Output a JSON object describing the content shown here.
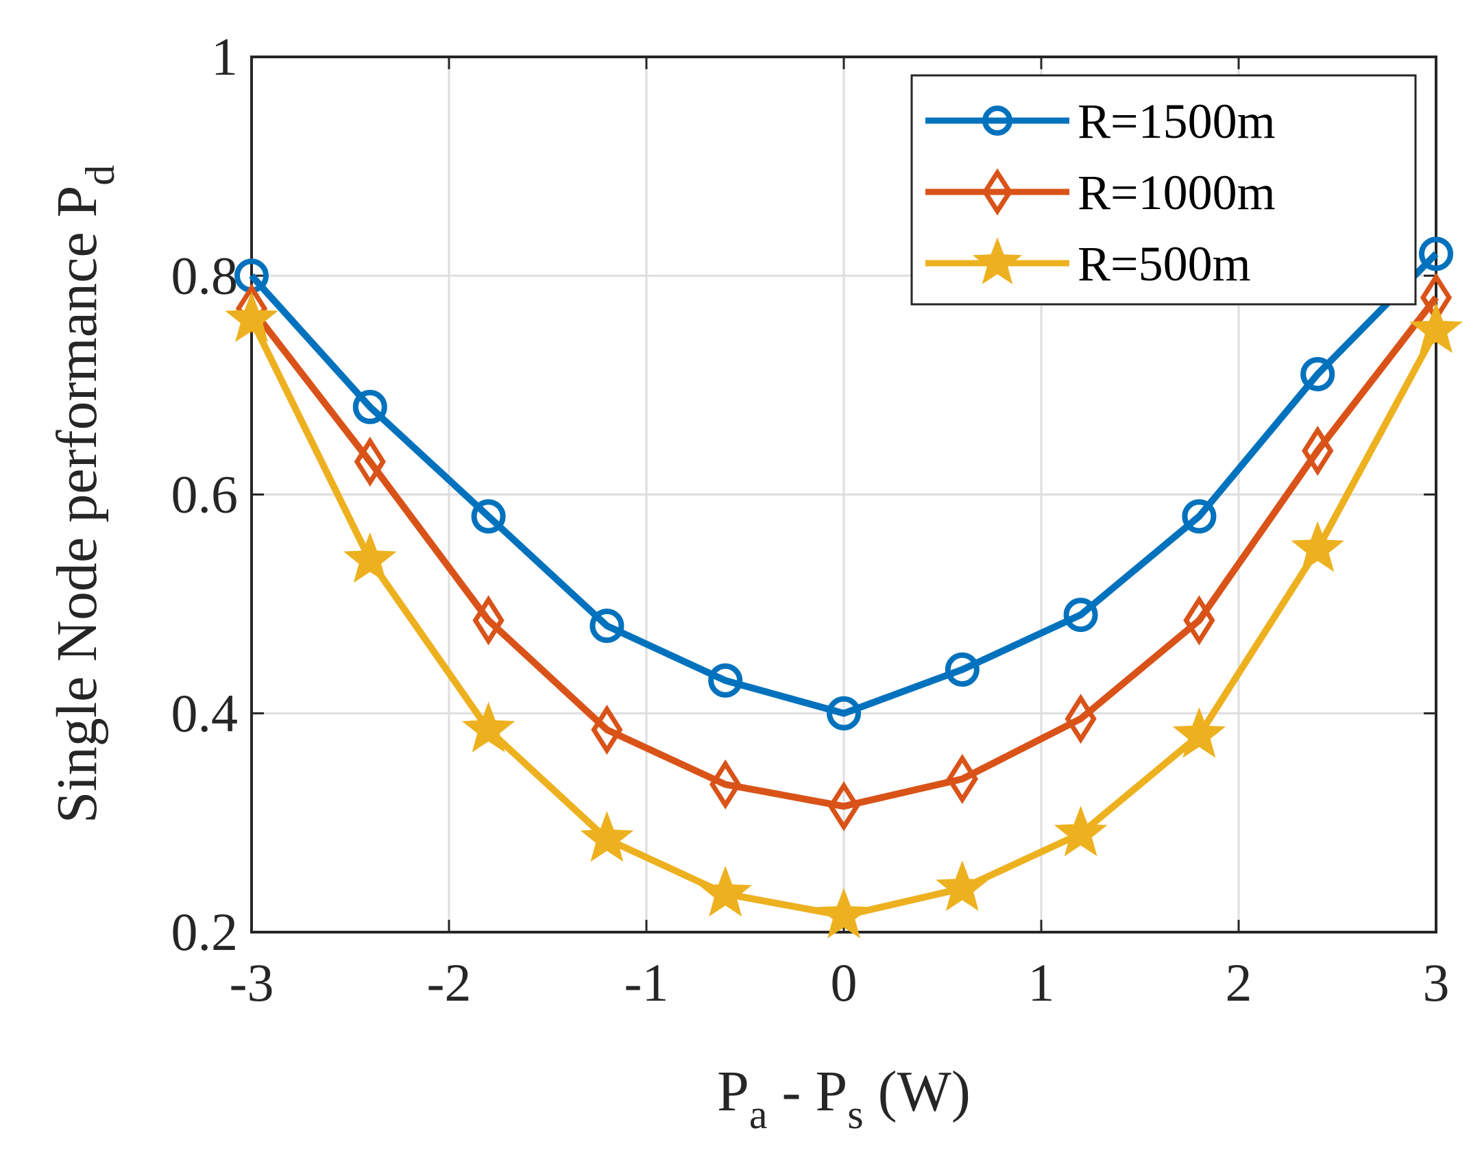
{
  "chart_data": {
    "type": "line",
    "title": "",
    "xlabel": {
      "main": "P",
      "sub_a": "a",
      "mid": " - P",
      "sub_s": "s",
      "end": " (W)"
    },
    "ylabel": {
      "main": "Single Node performance P",
      "sub": "d"
    },
    "xlim": [
      -3,
      3
    ],
    "ylim": [
      0.2,
      1
    ],
    "xticks": [
      -3,
      -2,
      -1,
      0,
      1,
      2,
      3
    ],
    "xtick_labels": [
      "-3",
      "-2",
      "-1",
      "0",
      "1",
      "2",
      "3"
    ],
    "yticks": [
      0.2,
      0.4,
      0.6,
      0.8,
      1
    ],
    "ytick_labels": [
      "0.2",
      "0.4",
      "0.6",
      "0.8",
      "1"
    ],
    "grid": true,
    "legend_position": "top-right",
    "x": [
      -3,
      -2.4,
      -1.8,
      -1.2,
      -0.6,
      0,
      0.6,
      1.2,
      1.8,
      2.4,
      3
    ],
    "series": [
      {
        "name": "R=1500m",
        "color": "#0072BD",
        "marker": "circle",
        "values": [
          0.8,
          0.68,
          0.58,
          0.48,
          0.43,
          0.4,
          0.44,
          0.49,
          0.58,
          0.71,
          0.82
        ]
      },
      {
        "name": "R=1000m",
        "color": "#D95319",
        "marker": "diamond",
        "values": [
          0.77,
          0.63,
          0.485,
          0.385,
          0.335,
          0.315,
          0.34,
          0.395,
          0.485,
          0.64,
          0.78
        ]
      },
      {
        "name": "R=500m",
        "color": "#EDB120",
        "marker": "star",
        "values": [
          0.76,
          0.54,
          0.385,
          0.285,
          0.235,
          0.215,
          0.24,
          0.29,
          0.38,
          0.55,
          0.75
        ]
      }
    ]
  }
}
